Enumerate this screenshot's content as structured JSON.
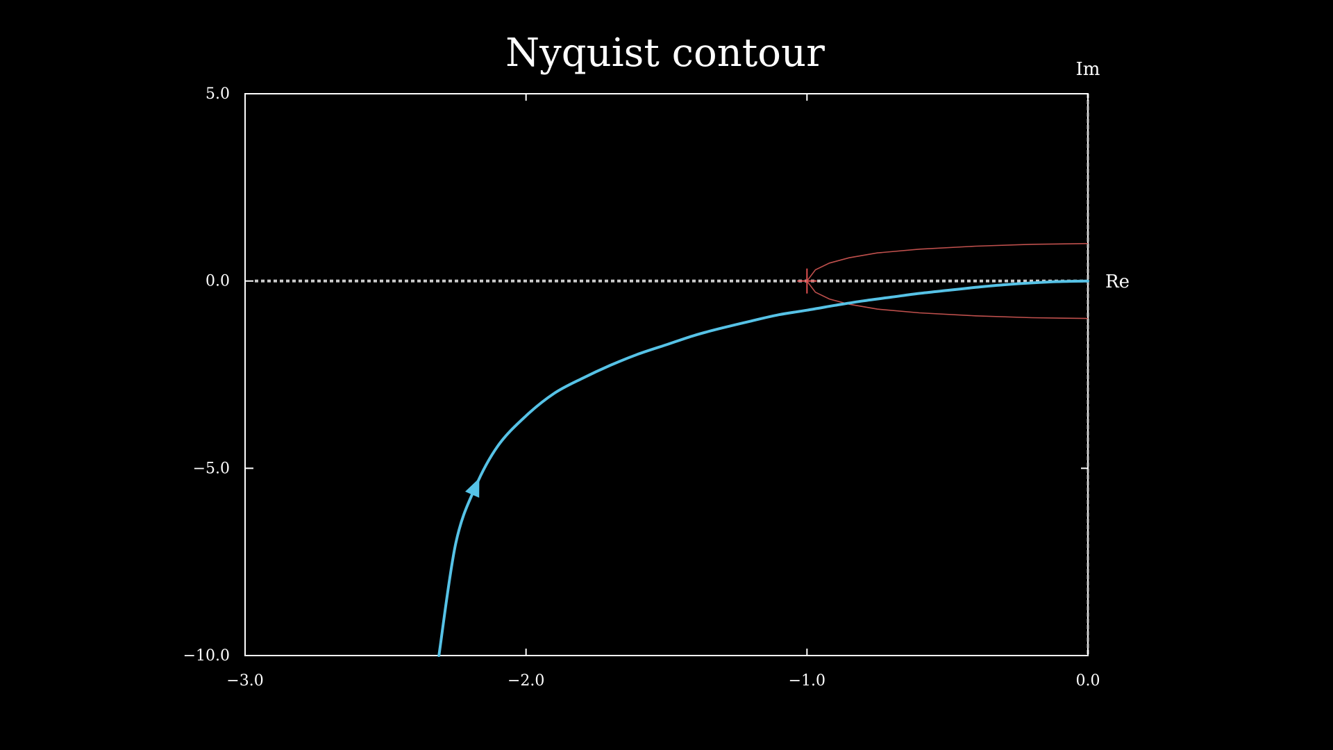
{
  "chart_data": {
    "type": "line",
    "title": "Nyquist contour",
    "xlabel": "Re",
    "ylabel": "Im",
    "xlim": [
      -3.0,
      0.0
    ],
    "ylim": [
      -10.0,
      5.0
    ],
    "xticks": [
      -3.0,
      -2.0,
      -1.0,
      0.0
    ],
    "xtick_labels": [
      "−3.0",
      "−2.0",
      "−1.0",
      "0.0"
    ],
    "yticks": [
      -10.0,
      -5.0,
      0.0,
      5.0
    ],
    "ytick_labels": [
      "−10.0",
      "−5.0",
      "0.0",
      "5.0"
    ],
    "grid": false,
    "colors": {
      "background": "#000000",
      "axes": "#ffffff",
      "contour": "#56c2e6",
      "critical_region": "#c0504d",
      "critical_point": "#e05050",
      "reference_lines": "#cccccc"
    },
    "series": [
      {
        "x": [
          -2.31,
          -2.25,
          -2.18,
          -2.1,
          -2.0,
          -1.9,
          -1.8,
          -1.7,
          -1.6,
          -1.5,
          -1.4,
          -1.3,
          -1.2,
          -1.1,
          -1.0,
          -0.9,
          -0.8,
          -0.7,
          -0.6,
          -0.5,
          -0.4,
          -0.3,
          -0.2,
          -0.1,
          0.0
        ],
        "y": [
          -10.0,
          -7.0,
          -5.5,
          -4.4,
          -3.6,
          -3.0,
          -2.6,
          -2.25,
          -1.95,
          -1.7,
          -1.45,
          -1.25,
          -1.07,
          -0.9,
          -0.78,
          -0.65,
          -0.53,
          -0.43,
          -0.33,
          -0.25,
          -0.17,
          -0.1,
          -0.05,
          -0.015,
          0.0
        ],
        "arrow_at": [
          -2.18,
          -5.5
        ]
      }
    ],
    "critical_region": {
      "x": [
        0.0,
        -0.2,
        -0.4,
        -0.6,
        -0.75,
        -0.85,
        -0.92,
        -0.97,
        -1.0,
        -0.97,
        -0.92,
        -0.85,
        -0.75,
        -0.6,
        -0.4,
        -0.2,
        0.0
      ],
      "y": [
        1.0,
        0.98,
        0.93,
        0.85,
        0.75,
        0.62,
        0.48,
        0.3,
        0.0,
        -0.3,
        -0.48,
        -0.62,
        -0.75,
        -0.85,
        -0.93,
        -0.98,
        -1.0
      ]
    },
    "critical_point": [
      -1.0,
      0.0
    ]
  }
}
